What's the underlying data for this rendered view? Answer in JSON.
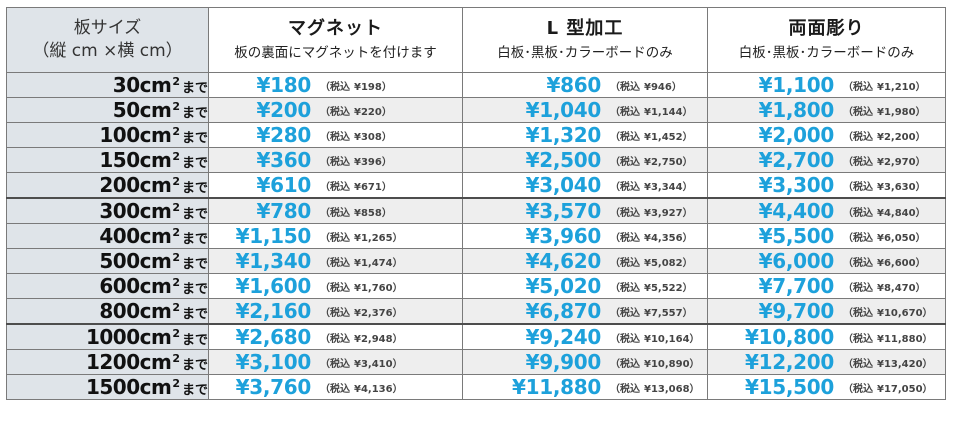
{
  "header": {
    "size": {
      "line1": "板サイズ",
      "line2": "（縦 cm ×横 cm）"
    },
    "magnet": {
      "title": "マグネット",
      "sub": "板の裏面にマグネットを付けます"
    },
    "lframe": {
      "title": "L 型加工",
      "sub": "白板･黒板･カラーボードのみ"
    },
    "both": {
      "title": "両面彫り",
      "sub": "白板･黒板･カラーボードのみ"
    }
  },
  "tax_label": "（税込",
  "tax_close": "）",
  "rows": [
    {
      "size": "30cm",
      "sup": "2",
      "suffix": "まで",
      "magnet": {
        "price": "¥180",
        "tax": "¥198"
      },
      "lframe": {
        "price": "¥860",
        "tax": "¥946"
      },
      "both": {
        "price": "¥1,100",
        "tax": "¥1,210"
      }
    },
    {
      "size": "50cm",
      "sup": "2",
      "suffix": "まで",
      "magnet": {
        "price": "¥200",
        "tax": "¥220"
      },
      "lframe": {
        "price": "¥1,040",
        "tax": "¥1,144"
      },
      "both": {
        "price": "¥1,800",
        "tax": "¥1,980"
      }
    },
    {
      "size": "100cm",
      "sup": "2",
      "suffix": "まで",
      "magnet": {
        "price": "¥280",
        "tax": "¥308"
      },
      "lframe": {
        "price": "¥1,320",
        "tax": "¥1,452"
      },
      "both": {
        "price": "¥2,000",
        "tax": "¥2,200"
      }
    },
    {
      "size": "150cm",
      "sup": "2",
      "suffix": "まで",
      "magnet": {
        "price": "¥360",
        "tax": "¥396"
      },
      "lframe": {
        "price": "¥2,500",
        "tax": "¥2,750"
      },
      "both": {
        "price": "¥2,700",
        "tax": "¥2,970"
      }
    },
    {
      "size": "200cm",
      "sup": "2",
      "suffix": "まで",
      "magnet": {
        "price": "¥610",
        "tax": "¥671"
      },
      "lframe": {
        "price": "¥3,040",
        "tax": "¥3,344"
      },
      "both": {
        "price": "¥3,300",
        "tax": "¥3,630"
      }
    },
    {
      "size": "300cm",
      "sup": "2",
      "suffix": "まで",
      "magnet": {
        "price": "¥780",
        "tax": "¥858"
      },
      "lframe": {
        "price": "¥3,570",
        "tax": "¥3,927"
      },
      "both": {
        "price": "¥4,400",
        "tax": "¥4,840"
      }
    },
    {
      "size": "400cm",
      "sup": "2",
      "suffix": "まで",
      "magnet": {
        "price": "¥1,150",
        "tax": "¥1,265"
      },
      "lframe": {
        "price": "¥3,960",
        "tax": "¥4,356"
      },
      "both": {
        "price": "¥5,500",
        "tax": "¥6,050"
      }
    },
    {
      "size": "500cm",
      "sup": "2",
      "suffix": "まで",
      "magnet": {
        "price": "¥1,340",
        "tax": "¥1,474"
      },
      "lframe": {
        "price": "¥4,620",
        "tax": "¥5,082"
      },
      "both": {
        "price": "¥6,000",
        "tax": "¥6,600"
      }
    },
    {
      "size": "600cm",
      "sup": "2",
      "suffix": "まで",
      "magnet": {
        "price": "¥1,600",
        "tax": "¥1,760"
      },
      "lframe": {
        "price": "¥5,020",
        "tax": "¥5,522"
      },
      "both": {
        "price": "¥7,700",
        "tax": "¥8,470"
      }
    },
    {
      "size": "800cm",
      "sup": "2",
      "suffix": "まで",
      "magnet": {
        "price": "¥2,160",
        "tax": "¥2,376"
      },
      "lframe": {
        "price": "¥6,870",
        "tax": "¥7,557"
      },
      "both": {
        "price": "¥9,700",
        "tax": "¥10,670"
      }
    },
    {
      "size": "1000cm",
      "sup": "2",
      "suffix": "まで",
      "magnet": {
        "price": "¥2,680",
        "tax": "¥2,948"
      },
      "lframe": {
        "price": "¥9,240",
        "tax": "¥10,164"
      },
      "both": {
        "price": "¥10,800",
        "tax": "¥11,880"
      }
    },
    {
      "size": "1200cm",
      "sup": "2",
      "suffix": "まで",
      "magnet": {
        "price": "¥3,100",
        "tax": "¥3,410"
      },
      "lframe": {
        "price": "¥9,900",
        "tax": "¥10,890"
      },
      "both": {
        "price": "¥12,200",
        "tax": "¥13,420"
      }
    },
    {
      "size": "1500cm",
      "sup": "2",
      "suffix": "まで",
      "magnet": {
        "price": "¥3,760",
        "tax": "¥4,136"
      },
      "lframe": {
        "price": "¥11,880",
        "tax": "¥13,068"
      },
      "both": {
        "price": "¥15,500",
        "tax": "¥17,050"
      }
    }
  ]
}
